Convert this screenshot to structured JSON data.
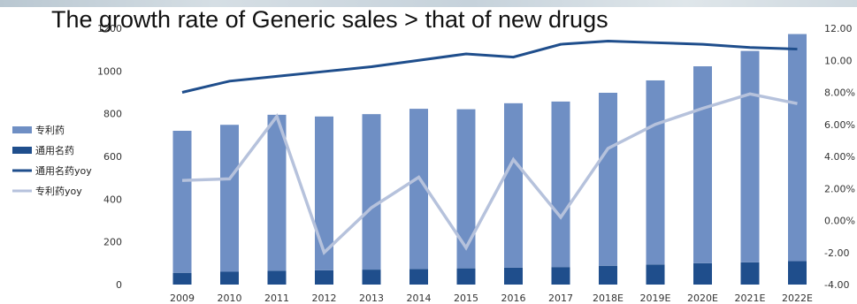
{
  "title": "The growth rate of Generic sales > that of new drugs",
  "chart_data": {
    "type": "bar",
    "categories": [
      "2009",
      "2010",
      "2011",
      "2012",
      "2013",
      "2014",
      "2015",
      "2016",
      "2017",
      "2018E",
      "2019E",
      "2020E",
      "2021E",
      "2022E"
    ],
    "series": [
      {
        "name": "专利药",
        "kind": "bar",
        "axis": "left",
        "color": "#6f8fc4",
        "values": [
          665,
          688,
          730,
          720,
          728,
          750,
          745,
          770,
          775,
          810,
          862,
          922,
          990,
          1063
        ]
      },
      {
        "name": "通用名药",
        "kind": "bar",
        "axis": "left",
        "color": "#1f4e8c",
        "values": [
          55,
          60,
          65,
          67,
          70,
          73,
          76,
          79,
          82,
          88,
          94,
          100,
          104,
          110
        ]
      },
      {
        "name": "通用名药yoy",
        "kind": "line",
        "axis": "right",
        "color": "#1f4e8c",
        "values": [
          8.0,
          8.7,
          9.0,
          9.3,
          9.6,
          10.0,
          10.4,
          10.2,
          11.0,
          11.2,
          11.1,
          11.0,
          10.8,
          10.7
        ]
      },
      {
        "name": "专利药yoy",
        "kind": "line",
        "axis": "right",
        "color": "#b6c2dc",
        "values": [
          2.5,
          2.6,
          6.5,
          -2.0,
          0.8,
          2.7,
          -1.7,
          3.8,
          0.2,
          4.5,
          6.0,
          7.0,
          7.9,
          7.3
        ]
      }
    ],
    "ylim": [
      0,
      1200
    ],
    "y_ticks": [
      0,
      200,
      400,
      600,
      800,
      1000,
      1200
    ],
    "y_tick_labels": [
      "0",
      "200",
      "400",
      "600",
      "800",
      "1000",
      "1200"
    ],
    "y2lim": [
      -4,
      12
    ],
    "y2_ticks": [
      -4,
      -2,
      0,
      2,
      4,
      6,
      8,
      10,
      12
    ],
    "y2_tick_labels": [
      "-4.00",
      "-2.00",
      "0.00%",
      "2.00%",
      "4.00%",
      "6.00%",
      "8.00%",
      "10.00",
      "12.00"
    ],
    "legend_position": "left",
    "grid": false
  }
}
